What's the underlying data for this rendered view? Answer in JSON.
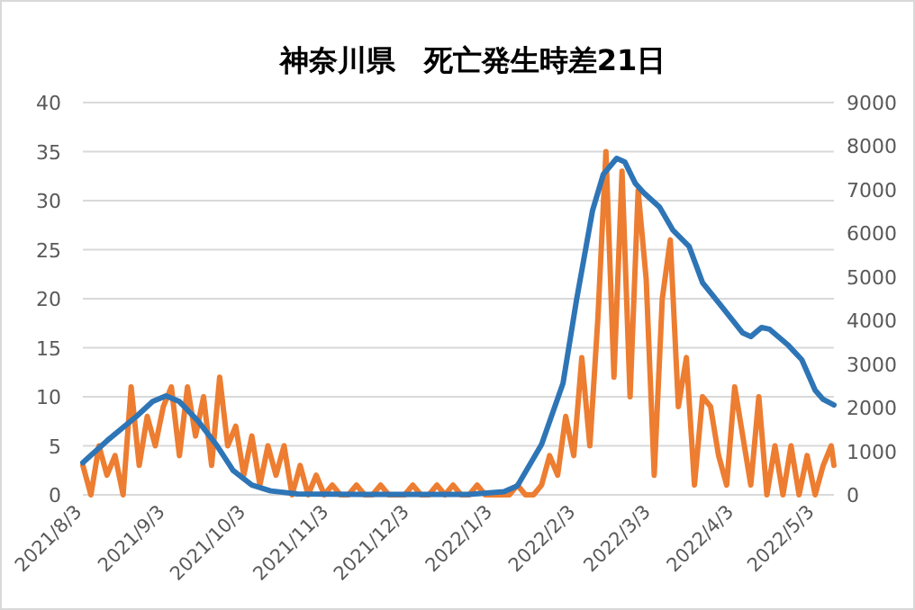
{
  "chart_data": {
    "type": "line",
    "title": "神奈川県　死亡発生時差21日",
    "xlim": [
      "2021-08-03",
      "2022-05-10"
    ],
    "xticks": [
      {
        "value": "2021-08-03",
        "label": "2021/8/3"
      },
      {
        "value": "2021-09-03",
        "label": "2021/9/3"
      },
      {
        "value": "2021-10-03",
        "label": "2021/10/3"
      },
      {
        "value": "2021-11-03",
        "label": "2021/11/3"
      },
      {
        "value": "2021-12-03",
        "label": "2021/12/3"
      },
      {
        "value": "2022-01-03",
        "label": "2022/1/3"
      },
      {
        "value": "2022-02-03",
        "label": "2022/2/3"
      },
      {
        "value": "2022-03-03",
        "label": "2022/3/3"
      },
      {
        "value": "2022-04-03",
        "label": "2022/4/3"
      },
      {
        "value": "2022-05-03",
        "label": "2022/5/3"
      }
    ],
    "ylim": [
      0,
      40
    ],
    "yticks": [
      0,
      5,
      10,
      15,
      20,
      25,
      30,
      35,
      40
    ],
    "y2lim": [
      0,
      9000
    ],
    "y2ticks": [
      0,
      1000,
      2000,
      3000,
      4000,
      5000,
      6000,
      7000,
      8000,
      9000
    ],
    "grid": "y",
    "series": [
      {
        "color": "#ed7d31",
        "axis": "y",
        "x": [
          "2021-08-03",
          "2021-08-06",
          "2021-08-09",
          "2021-08-12",
          "2021-08-15",
          "2021-08-18",
          "2021-08-21",
          "2021-08-24",
          "2021-08-27",
          "2021-08-30",
          "2021-09-02",
          "2021-09-05",
          "2021-09-08",
          "2021-09-11",
          "2021-09-14",
          "2021-09-17",
          "2021-09-20",
          "2021-09-23",
          "2021-09-26",
          "2021-09-29",
          "2021-10-02",
          "2021-10-05",
          "2021-10-08",
          "2021-10-11",
          "2021-10-14",
          "2021-10-17",
          "2021-10-20",
          "2021-10-23",
          "2021-10-26",
          "2021-10-29",
          "2021-11-01",
          "2021-11-04",
          "2021-11-07",
          "2021-11-10",
          "2021-11-13",
          "2021-11-16",
          "2021-11-19",
          "2021-11-22",
          "2021-11-25",
          "2021-11-28",
          "2021-12-01",
          "2021-12-04",
          "2021-12-07",
          "2021-12-10",
          "2021-12-13",
          "2021-12-16",
          "2021-12-19",
          "2021-12-22",
          "2021-12-25",
          "2021-12-28",
          "2021-12-31",
          "2022-01-03",
          "2022-01-06",
          "2022-01-09",
          "2022-01-12",
          "2022-01-15",
          "2022-01-18",
          "2022-01-21",
          "2022-01-24",
          "2022-01-27",
          "2022-01-30",
          "2022-02-02",
          "2022-02-05",
          "2022-02-08",
          "2022-02-11",
          "2022-02-14",
          "2022-02-17",
          "2022-02-20",
          "2022-02-23",
          "2022-02-26",
          "2022-03-01",
          "2022-03-04",
          "2022-03-07",
          "2022-03-10",
          "2022-03-13",
          "2022-03-16",
          "2022-03-19",
          "2022-03-22",
          "2022-03-25",
          "2022-03-28",
          "2022-03-31",
          "2022-04-03",
          "2022-04-06",
          "2022-04-09",
          "2022-04-12",
          "2022-04-15",
          "2022-04-18",
          "2022-04-21",
          "2022-04-24",
          "2022-04-27",
          "2022-04-30",
          "2022-05-03",
          "2022-05-06",
          "2022-05-09",
          "2022-05-10"
        ],
        "values": [
          3,
          0,
          5,
          2,
          4,
          0,
          11,
          3,
          8,
          5,
          9,
          11,
          4,
          11,
          6,
          10,
          3,
          12,
          5,
          7,
          2,
          6,
          1,
          5,
          2,
          5,
          0,
          3,
          0,
          2,
          0,
          1,
          0,
          0,
          1,
          0,
          0,
          1,
          0,
          0,
          0,
          1,
          0,
          0,
          1,
          0,
          1,
          0,
          0,
          1,
          0,
          0,
          0,
          0,
          1,
          0,
          0,
          1,
          4,
          2,
          8,
          4,
          14,
          5,
          18,
          35,
          12,
          33,
          10,
          31,
          22,
          2,
          20,
          26,
          9,
          14,
          1,
          10,
          9,
          4,
          1,
          11,
          6,
          1,
          10,
          0,
          5,
          0,
          5,
          0,
          4,
          0,
          3,
          5,
          3
        ]
      },
      {
        "color": "#2e75b6",
        "axis": "y2",
        "x": [
          "2021-08-03",
          "2021-08-12",
          "2021-08-23",
          "2021-08-29",
          "2021-09-03",
          "2021-09-08",
          "2021-09-15",
          "2021-09-22",
          "2021-09-28",
          "2021-10-05",
          "2021-10-12",
          "2021-10-22",
          "2021-11-15",
          "2021-12-25",
          "2022-01-07",
          "2022-01-12",
          "2022-01-21",
          "2022-01-29",
          "2022-02-03",
          "2022-02-09",
          "2022-02-13",
          "2022-02-18",
          "2022-02-21",
          "2022-02-25",
          "2022-02-28",
          "2022-03-06",
          "2022-03-11",
          "2022-03-17",
          "2022-03-22",
          "2022-03-29",
          "2022-04-06",
          "2022-04-09",
          "2022-04-13",
          "2022-04-16",
          "2022-04-23",
          "2022-04-28",
          "2022-05-03",
          "2022-05-06",
          "2022-05-10"
        ],
        "values": [
          740,
          1240,
          1800,
          2140,
          2270,
          2140,
          1690,
          1130,
          560,
          225,
          90,
          20,
          10,
          10,
          70,
          206,
          1156,
          2560,
          4460,
          6520,
          7350,
          7720,
          7640,
          7140,
          6935,
          6600,
          6070,
          5700,
          4870,
          4330,
          3715,
          3630,
          3840,
          3800,
          3430,
          3100,
          2400,
          2190,
          2060
        ]
      }
    ]
  }
}
